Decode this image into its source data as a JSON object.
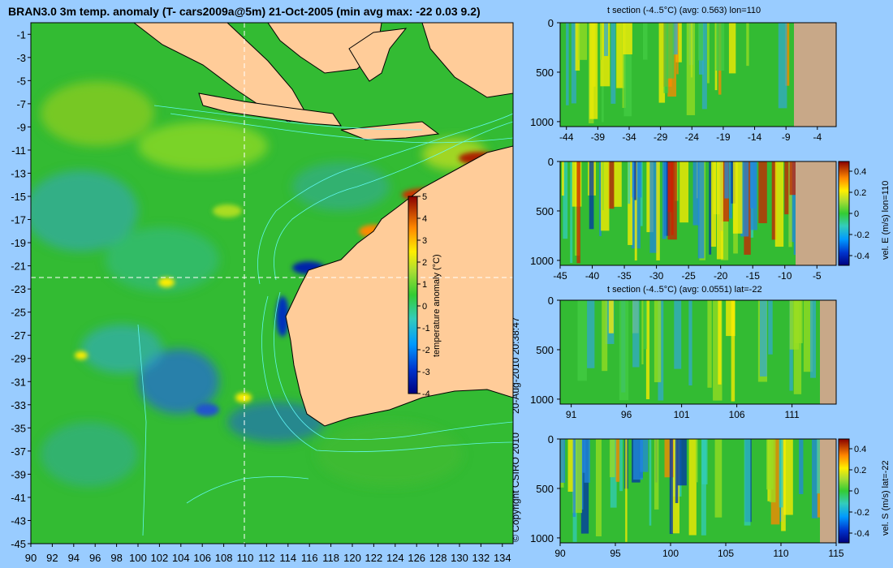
{
  "page": {
    "main_title": "BRAN3.0 3m temp. anomaly (T- cars2009a@5m) 21-Oct-2005 (min avg max: -22 0.03 9.2)",
    "copyright": "© Copyright CSIRO 2010",
    "timestamp": "20-Aug-2010 20:38:47"
  },
  "colors": {
    "background": "#99ccff",
    "land": "#ffcc99",
    "section_land": "#c8a888",
    "ocean_base": "#33bb33",
    "contour": "#66ffff",
    "crosshair": "#ffffff"
  },
  "chart_data": [
    {
      "type": "heatmap",
      "name": "map",
      "title": "BRAN3.0 3m temp. anomaly (T- cars2009a@5m) 21-Oct-2005 (min avg max: -22 0.03 9.2)",
      "xlim": [
        90,
        135
      ],
      "ylim": [
        -45,
        0
      ],
      "x_ticks": [
        "90",
        "92",
        "94",
        "96",
        "98",
        "100",
        "102",
        "104",
        "106",
        "108",
        "110",
        "112",
        "114",
        "116",
        "118",
        "120",
        "122",
        "124",
        "126",
        "128",
        "130",
        "132",
        "134"
      ],
      "y_ticks": [
        "-1",
        "-3",
        "-5",
        "-7",
        "-9",
        "-11",
        "-13",
        "-15",
        "-17",
        "-19",
        "-21",
        "-23",
        "-25",
        "-27",
        "-29",
        "-31",
        "-33",
        "-35",
        "-37",
        "-39",
        "-41",
        "-43",
        "-45"
      ],
      "crosshair": {
        "lon": 110,
        "lat": -22
      },
      "colorbar": {
        "label": "temperature anomaly (°C)",
        "ticks": [
          "5",
          "4",
          "3",
          "2",
          "1",
          "0",
          "-1",
          "-2",
          "-3",
          "-4"
        ],
        "range": [
          -4,
          5
        ]
      }
    },
    {
      "type": "heatmap",
      "name": "t-section-lon110",
      "title": "t section (-4..5°C) (avg: 0.563) lon=110",
      "x_ticks": [
        "-44",
        "-39",
        "-34",
        "-29",
        "-24",
        "-19",
        "-14",
        "-9",
        "-4"
      ],
      "y_ticks": [
        "0",
        "500",
        "1000"
      ],
      "xlim": [
        -45,
        -1
      ],
      "ylim": [
        1050,
        0
      ]
    },
    {
      "type": "heatmap",
      "name": "vel-e-section-lon110",
      "title": "",
      "colorbar_label": "vel. E (m/s) lon=110",
      "colorbar_ticks": [
        "0.4",
        "0.2",
        "0",
        "-0.2",
        "-0.4"
      ],
      "x_ticks": [
        "-45",
        "-40",
        "-35",
        "-30",
        "-25",
        "-20",
        "-15",
        "-10",
        "-5"
      ],
      "y_ticks": [
        "0",
        "500",
        "1000"
      ],
      "xlim": [
        -45,
        -2
      ],
      "ylim": [
        1050,
        0
      ]
    },
    {
      "type": "heatmap",
      "name": "t-section-lat-22",
      "title": "t section (-4..5°C) (avg: 0.0551) lat=-22",
      "x_ticks": [
        "91",
        "96",
        "101",
        "106",
        "111"
      ],
      "y_ticks": [
        "0",
        "500",
        "1000"
      ],
      "xlim": [
        90,
        115
      ],
      "ylim": [
        1050,
        0
      ]
    },
    {
      "type": "heatmap",
      "name": "vel-s-section-lat-22",
      "title": "",
      "colorbar_label": "vel. S (m/s) lat=-22",
      "colorbar_ticks": [
        "0.4",
        "0.2",
        "0",
        "-0.2",
        "-0.4"
      ],
      "x_ticks": [
        "90",
        "95",
        "100",
        "105",
        "110",
        "115"
      ],
      "y_ticks": [
        "0",
        "500",
        "1000"
      ],
      "xlim": [
        90,
        115
      ],
      "ylim": [
        1050,
        0
      ]
    }
  ]
}
